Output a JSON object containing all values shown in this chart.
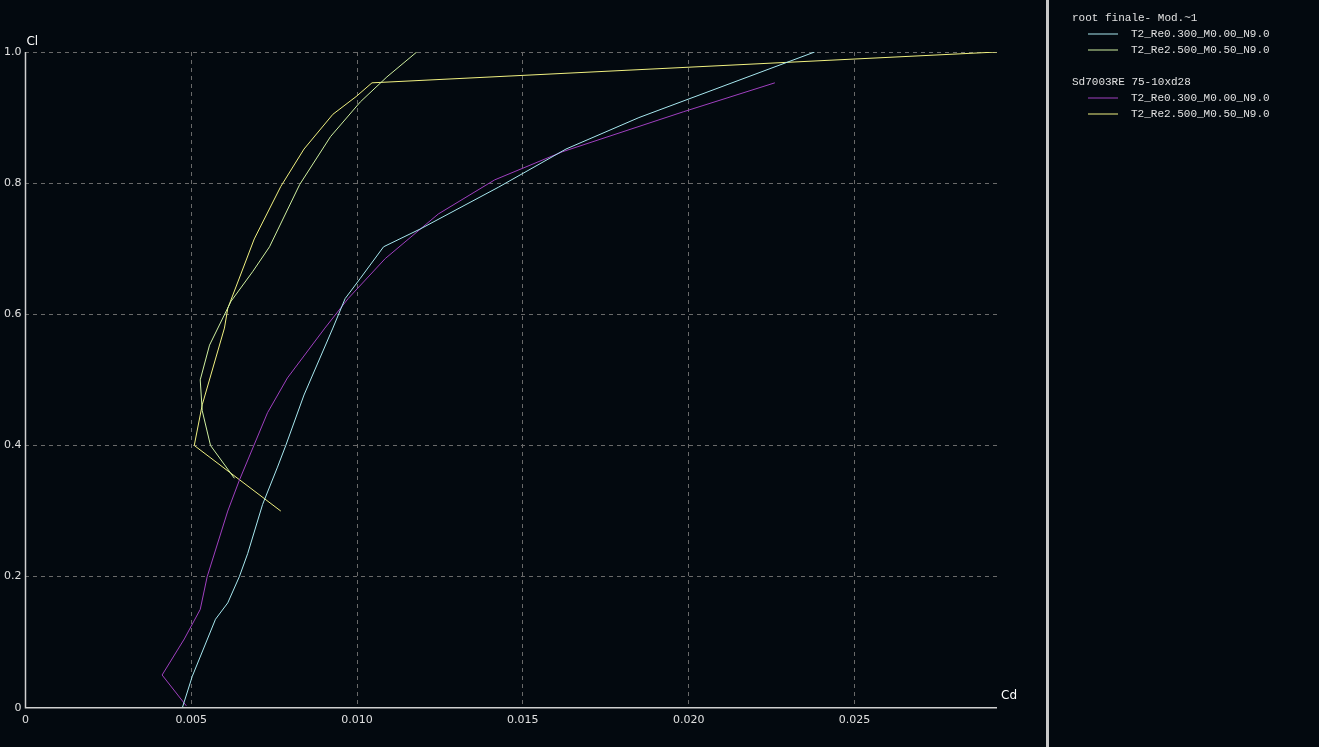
{
  "chart_data": {
    "type": "line",
    "xlabel": "Cd",
    "ylabel": "Cl",
    "xlim": [
      0,
      0.0293
    ],
    "ylim": [
      0,
      1.0
    ],
    "xticks": [
      0,
      {
        "value": 0.005,
        "label": "0.005"
      },
      {
        "value": 0.01,
        "label": "0.010"
      },
      {
        "value": 0.015,
        "label": "0.015"
      },
      {
        "value": 0.02,
        "label": "0.020"
      },
      {
        "value": 0.025,
        "label": "0.025"
      }
    ],
    "yticks": [
      0,
      {
        "value": 0.2,
        "label": "0.2"
      },
      {
        "value": 0.4,
        "label": "0.4"
      },
      {
        "value": 0.6,
        "label": "0.6"
      },
      {
        "value": 0.8,
        "label": "0.8"
      },
      {
        "value": 1,
        "label": "1.0"
      }
    ],
    "grid": true,
    "legend": "right",
    "marker": "none",
    "line_style": "solid",
    "annotations": [
      "root finale- Mod.~1",
      "Sd7003RE 75-10xd28"
    ],
    "series": [
      {
        "name": "T2_Re0.300_M0.00_N9.0",
        "color": "#a8e8f0",
        "x": [
          0.00473,
          0.00503,
          0.00573,
          0.0061,
          0.00645,
          0.0067,
          0.00715,
          0.0076,
          0.00785,
          0.0084,
          0.00927,
          0.00964,
          0.0101,
          0.0108,
          0.0119,
          0.01427,
          0.0163,
          0.0185,
          0.0238
        ],
        "values": [
          0,
          0.048,
          0.135,
          0.16,
          0.2,
          0.235,
          0.31,
          0.367,
          0.4,
          0.477,
          0.579,
          0.624,
          0.655,
          0.703,
          0.73,
          0.794,
          0.852,
          0.9,
          1.0
        ]
      },
      {
        "name": "T2_Re2.500_M0.50_N9.0",
        "color": "#d0f0a0",
        "x": [
          0.0063,
          0.00558,
          0.00533,
          0.00527,
          0.00555,
          0.0062,
          0.00685,
          0.00736,
          0.00827,
          0.0092,
          0.0101,
          0.0109,
          0.0118
        ],
        "values": [
          0.35,
          0.4,
          0.453,
          0.5,
          0.553,
          0.62,
          0.665,
          0.703,
          0.798,
          0.871,
          0.924,
          0.962,
          1.0
        ]
      },
      {
        "name": "T2_Re0.300_M0.00_N9.0",
        "color": "#a040c0",
        "x": [
          0.00485,
          0.00412,
          0.00479,
          0.00527,
          0.00548,
          0.0061,
          0.00645,
          0.0073,
          0.0079,
          0.00903,
          0.00973,
          0.01085,
          0.01245,
          0.01415,
          0.0162,
          0.01985,
          0.0226
        ],
        "values": [
          0.003,
          0.05,
          0.105,
          0.15,
          0.2,
          0.3,
          0.347,
          0.45,
          0.503,
          0.579,
          0.624,
          0.685,
          0.753,
          0.805,
          0.848,
          0.909,
          0.953
        ]
      },
      {
        "name": "T2_Re2.500_M0.50_N9.0",
        "color": "#f0f080",
        "x": [
          0.0077,
          0.00509,
          0.00533,
          0.006,
          0.0061,
          0.0069,
          0.0077,
          0.0084,
          0.00927,
          0.00997,
          0.01045,
          0.0293
        ],
        "values": [
          0.3,
          0.4,
          0.462,
          0.579,
          0.609,
          0.715,
          0.795,
          0.852,
          0.905,
          0.932,
          0.953,
          1.0
        ]
      }
    ]
  }
}
